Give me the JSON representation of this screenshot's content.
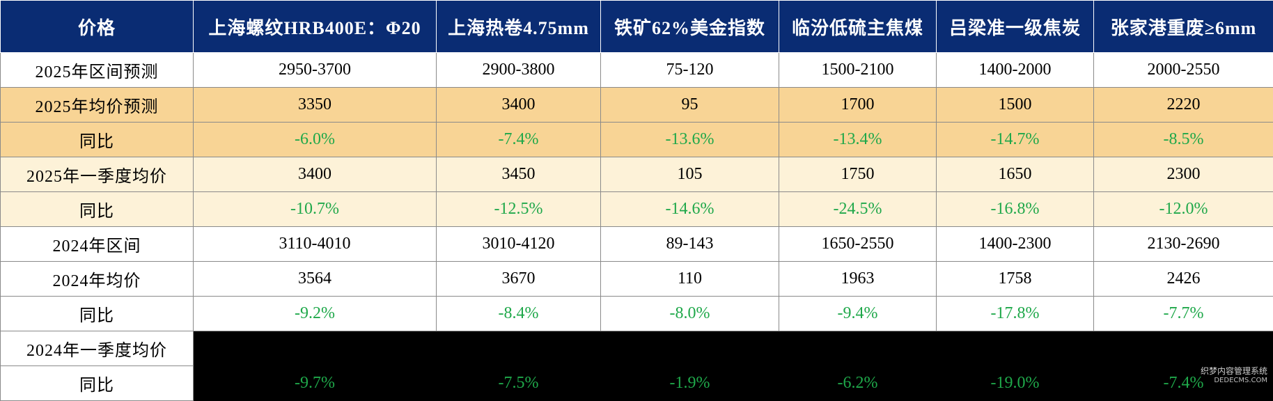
{
  "table": {
    "headers": [
      "价格",
      "上海螺纹HRB400E：Φ20",
      "上海热卷4.75mm",
      "铁矿62%美金指数",
      "临汾低硫主焦煤",
      "吕梁准一级焦炭",
      "张家港重废≥6mm"
    ],
    "rows": [
      {
        "label": "2025年区间预测",
        "values": [
          "2950-3700",
          "2900-3800",
          "75-120",
          "1500-2100",
          "1400-2000",
          "2000-2550"
        ]
      },
      {
        "label": "2025年均价预测",
        "values": [
          "3350",
          "3400",
          "95",
          "1700",
          "1500",
          "2220"
        ]
      },
      {
        "label": "同比",
        "values": [
          "-6.0%",
          "-7.4%",
          "-13.6%",
          "-13.4%",
          "-14.7%",
          "-8.5%"
        ]
      },
      {
        "label": "2025年一季度均价",
        "values": [
          "3400",
          "3450",
          "105",
          "1750",
          "1650",
          "2300"
        ]
      },
      {
        "label": "同比",
        "values": [
          "-10.7%",
          "-12.5%",
          "-14.6%",
          "-24.5%",
          "-16.8%",
          "-12.0%"
        ]
      },
      {
        "label": "2024年区间",
        "values": [
          "3110-4010",
          "3010-4120",
          "89-143",
          "1650-2550",
          "1400-2300",
          "2130-2690"
        ]
      },
      {
        "label": "2024年均价",
        "values": [
          "3564",
          "3670",
          "110",
          "1963",
          "1758",
          "2426"
        ]
      },
      {
        "label": "同比",
        "values": [
          "-9.2%",
          "-8.4%",
          "-8.0%",
          "-9.4%",
          "-17.8%",
          "-7.7%"
        ]
      },
      {
        "label": "2024年一季度均价",
        "values": []
      },
      {
        "label": "同比",
        "values": [
          "-9.7%",
          "-7.5%",
          "-1.9%",
          "-6.2%",
          "-19.0%",
          "-7.4%"
        ]
      }
    ]
  },
  "colors": {
    "header_bg": "#0a2c73",
    "header_text": "#ffffff",
    "avg_forecast_bg": "#f8d495",
    "q1_bg": "#fdf2d8",
    "negative_text": "#1fa84a",
    "masked_bg": "#000000"
  },
  "watermark": {
    "line1": "织梦内容管理系统",
    "line2": "DEDECMS.COM"
  }
}
